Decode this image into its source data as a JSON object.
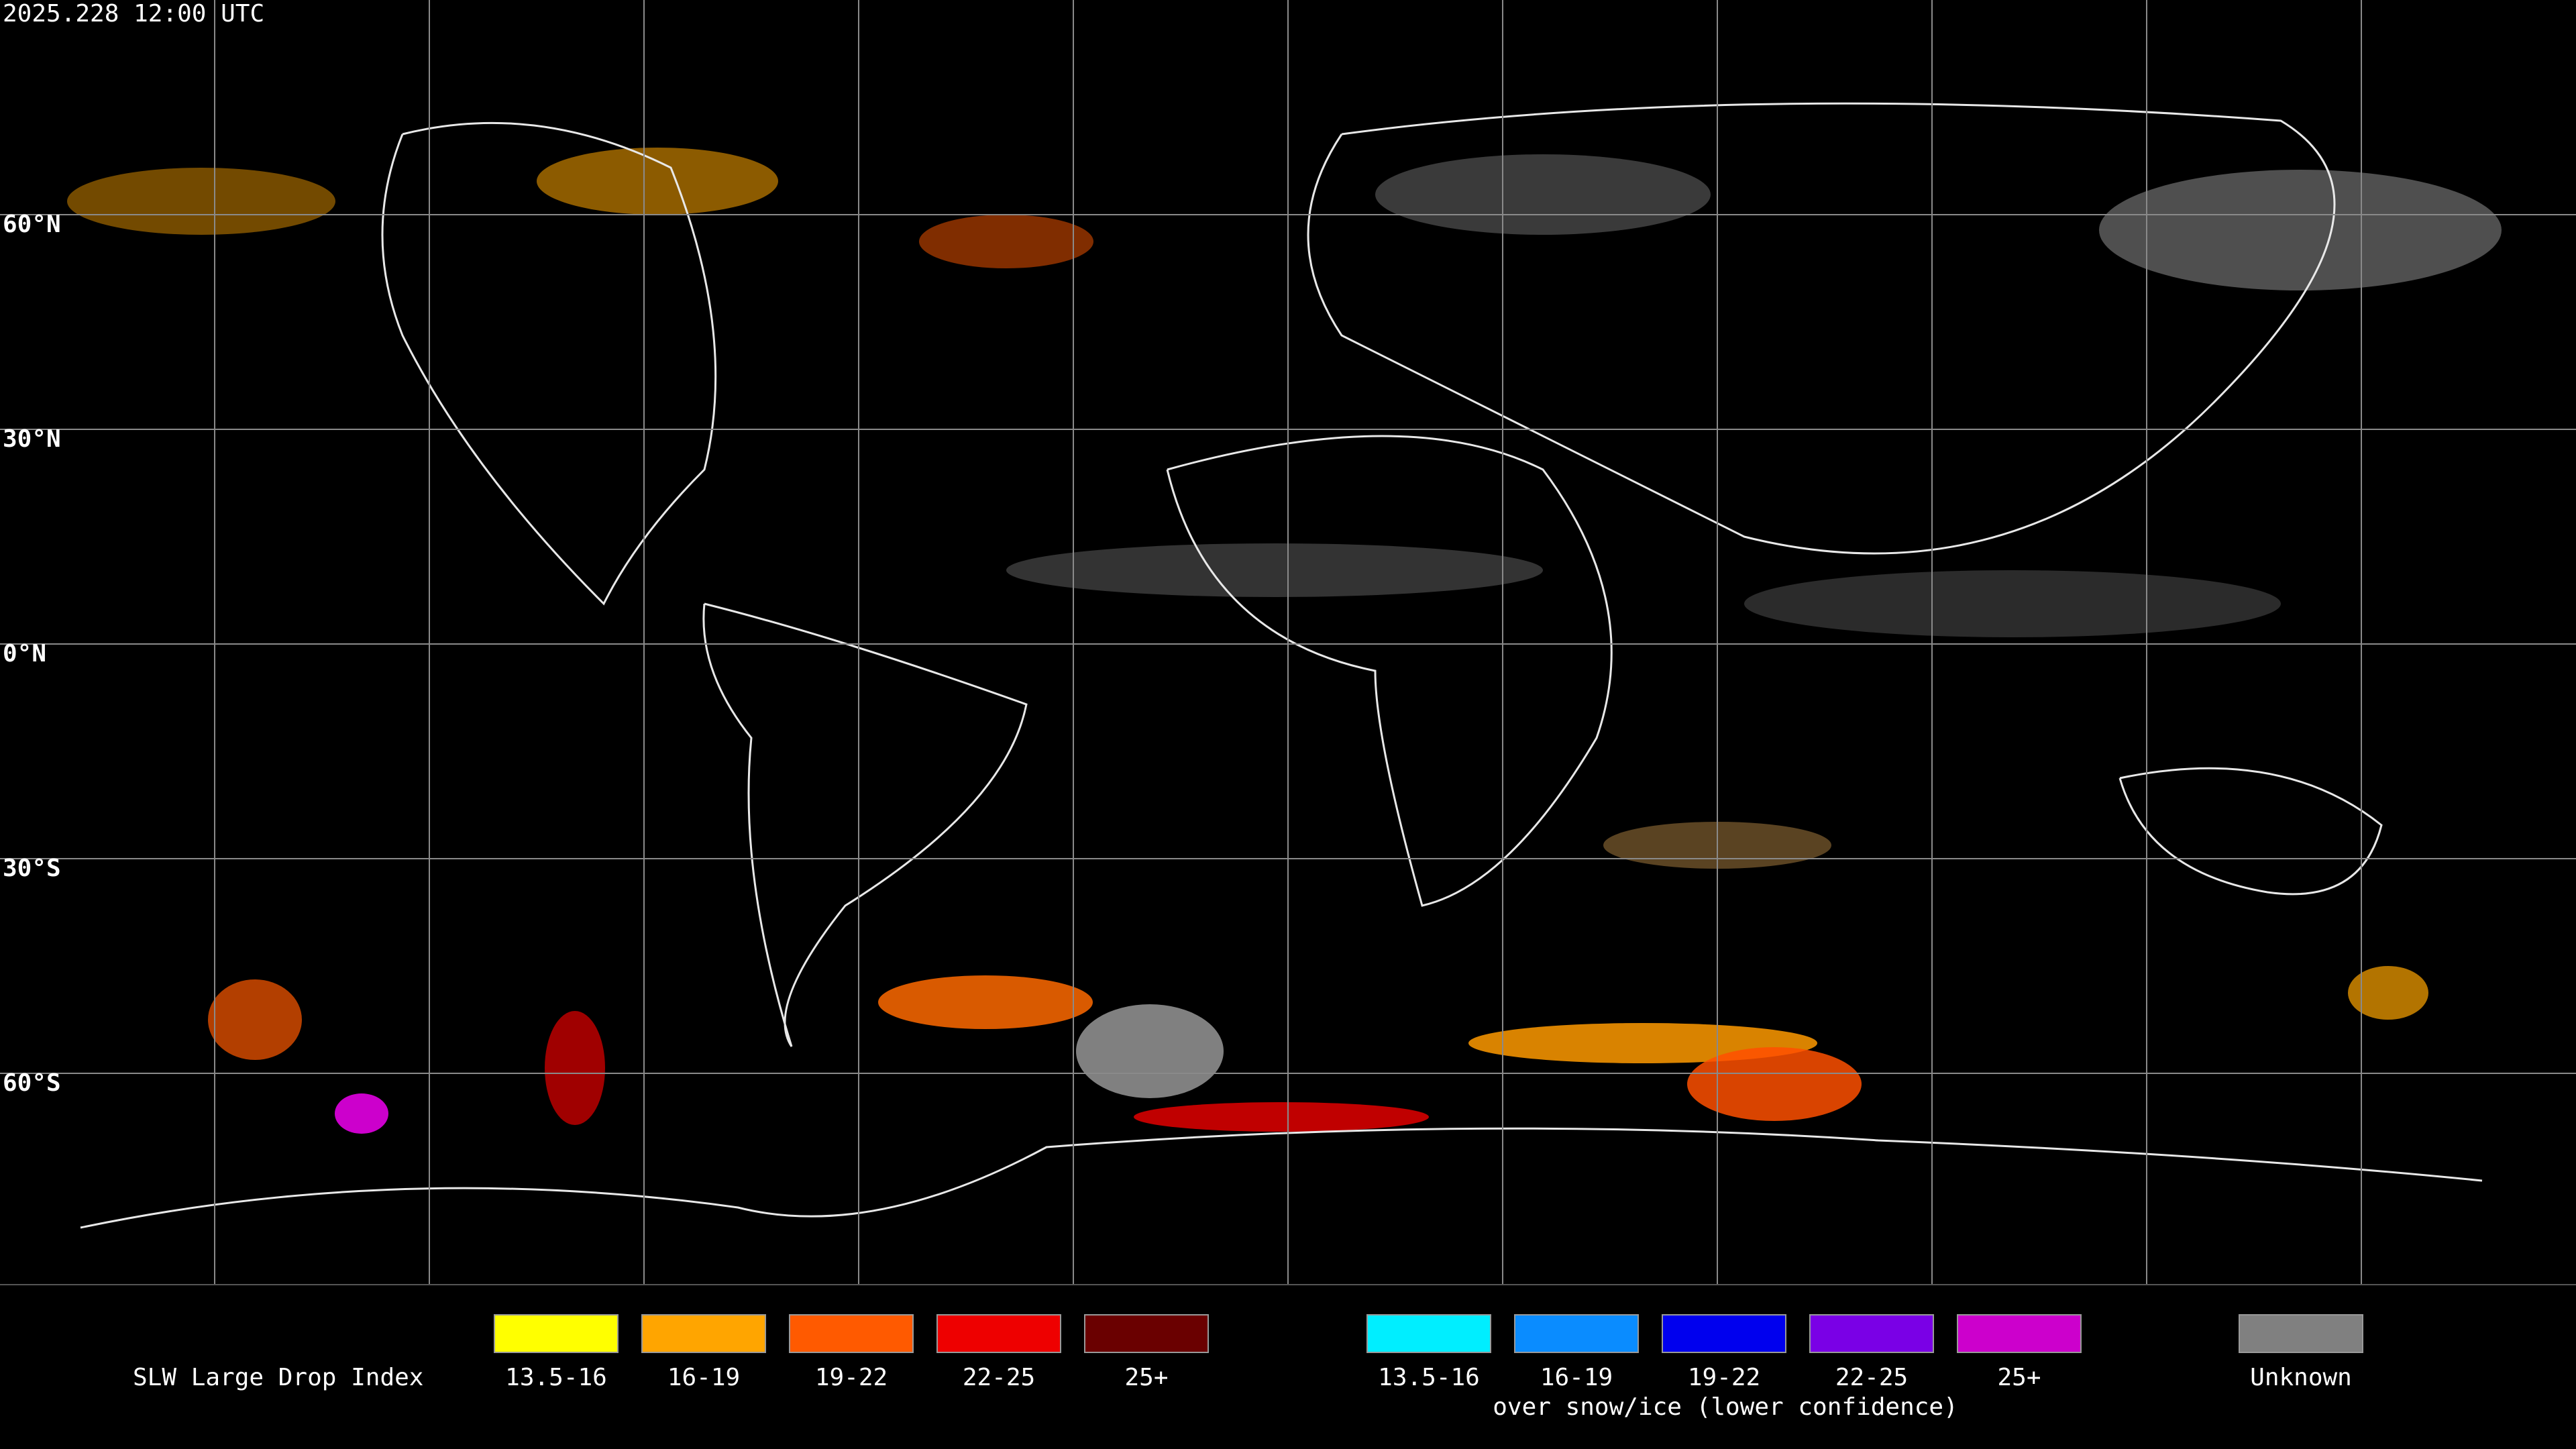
{
  "title": "2025.228 12:00 UTC",
  "latitude_labels": [
    "60°N",
    "30°N",
    "0°N",
    "30°S",
    "60°S"
  ],
  "legend": {
    "title": "SLW Large Drop Index",
    "standard": [
      {
        "label": "13.5-16",
        "color": "#ffff00"
      },
      {
        "label": "16-19",
        "color": "#ffa500"
      },
      {
        "label": "19-22",
        "color": "#ff5a00"
      },
      {
        "label": "22-25",
        "color": "#ee0000"
      },
      {
        "label": "25+",
        "color": "#6a0000"
      }
    ],
    "snow_ice": [
      {
        "label": "13.5-16",
        "color": "#00eeff"
      },
      {
        "label": "16-19",
        "color": "#0a8cff"
      },
      {
        "label": "19-22",
        "color": "#0000ee"
      },
      {
        "label": "22-25",
        "color": "#7a00e6"
      },
      {
        "label": "25+",
        "color": "#cc00cc"
      }
    ],
    "snow_ice_caption": "over snow/ice (lower confidence)",
    "unknown": {
      "label": "Unknown",
      "color": "#808080"
    }
  }
}
